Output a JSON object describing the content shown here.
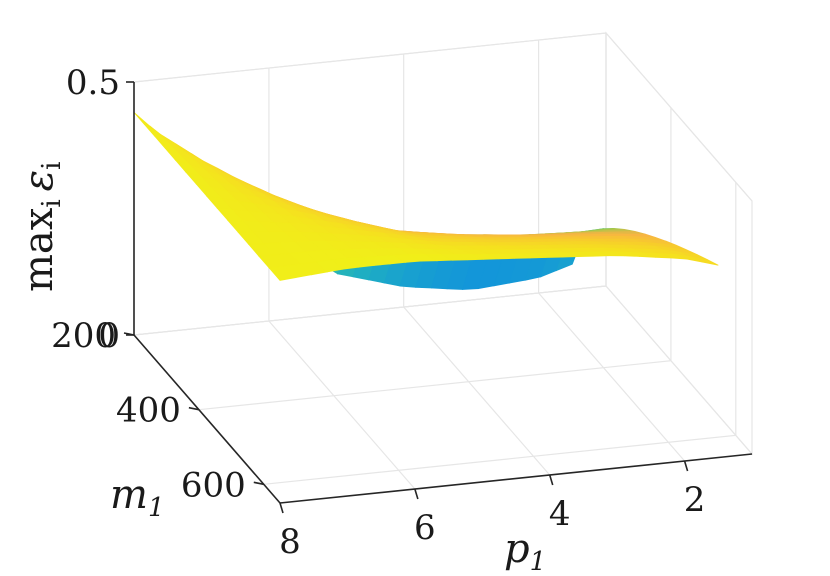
{
  "chart_data": {
    "type": "surface",
    "description_free": true,
    "x_axis": {
      "label_var": "p",
      "label_sub": "1",
      "ticks": [
        "8",
        "6",
        "4",
        "2"
      ],
      "tick_values": [
        8,
        6,
        4,
        2
      ],
      "lim": [
        1,
        8
      ]
    },
    "y_axis": {
      "label_var": "m",
      "label_sub": "1",
      "ticks": [
        "200",
        "400",
        "600"
      ],
      "tick_values": [
        200,
        400,
        600
      ],
      "lim": [
        200,
        650
      ]
    },
    "z_axis": {
      "label_fn": "max",
      "label_sub": "i",
      "label_var": "ε",
      "label_var_sub": "i",
      "ticks": [
        "0",
        "0.5"
      ],
      "tick_values": [
        0,
        0.5
      ],
      "lim": [
        0,
        0.5
      ]
    },
    "surface_profile": {
      "p": [
        8,
        7,
        6,
        5,
        4,
        3,
        2,
        1.5
      ],
      "max_eps_min_m": [
        0.44,
        0.31,
        0.18,
        0.08,
        0.04,
        0.02,
        0.03,
        0.05
      ],
      "max_eps_max_m": [
        0.44,
        0.45,
        0.45,
        0.44,
        0.43,
        0.42,
        0.4,
        0.38
      ]
    },
    "colormap": [
      "#0072bd",
      "#0f8fe0",
      "#20b0c0",
      "#4cc38a",
      "#a5c84a",
      "#f7b344",
      "#f7cc2c",
      "#f5e11f",
      "#f0f018"
    ],
    "grid": true
  }
}
